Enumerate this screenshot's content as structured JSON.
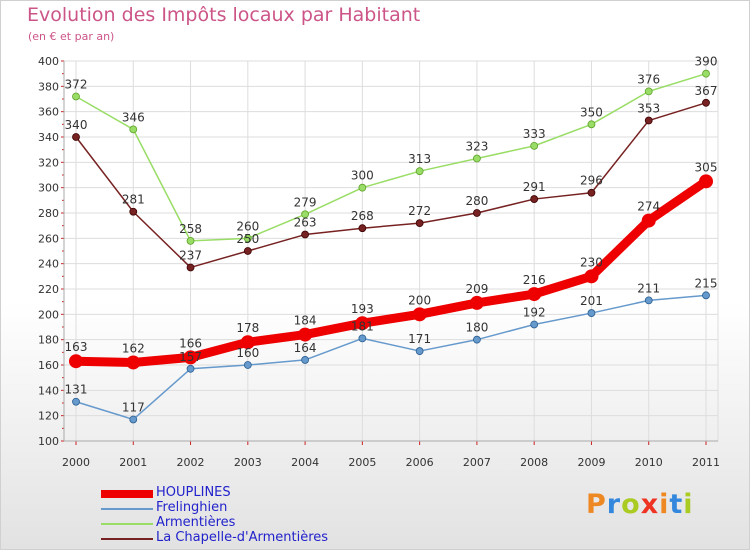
{
  "header": {
    "title": "Evolution des Impôts locaux par Habitant",
    "subtitle": "(en € et par an)"
  },
  "logo": {
    "text": "Proxiti"
  },
  "chart_data": {
    "type": "line",
    "title": "Evolution des Impôts locaux par Habitant",
    "subtitle": "(en € et par an)",
    "xlabel": "",
    "ylabel": "",
    "x": [
      2000,
      2001,
      2002,
      2003,
      2004,
      2005,
      2006,
      2007,
      2008,
      2009,
      2010,
      2011
    ],
    "ylim": [
      100,
      400
    ],
    "yticks": [
      100,
      120,
      140,
      160,
      180,
      200,
      220,
      240,
      260,
      280,
      300,
      320,
      340,
      360,
      380,
      400
    ],
    "grid": true,
    "legend_position": "bottom-left",
    "series": [
      {
        "name": "HOUPLINES",
        "values": [
          163,
          162,
          166,
          178,
          184,
          193,
          200,
          209,
          216,
          230,
          274,
          305
        ],
        "color": "#ee0000",
        "emphasis": true
      },
      {
        "name": "Frelinghien",
        "values": [
          131,
          117,
          157,
          160,
          164,
          181,
          171,
          180,
          192,
          201,
          211,
          215
        ],
        "color": "#6699cc"
      },
      {
        "name": "Armentières",
        "values": [
          372,
          346,
          258,
          260,
          279,
          300,
          313,
          323,
          333,
          350,
          376,
          390
        ],
        "color": "#99dd66"
      },
      {
        "name": "La Chapelle-d'Armentières",
        "values": [
          340,
          281,
          237,
          250,
          263,
          268,
          272,
          280,
          291,
          296,
          353,
          367
        ],
        "color": "#772222"
      }
    ]
  }
}
